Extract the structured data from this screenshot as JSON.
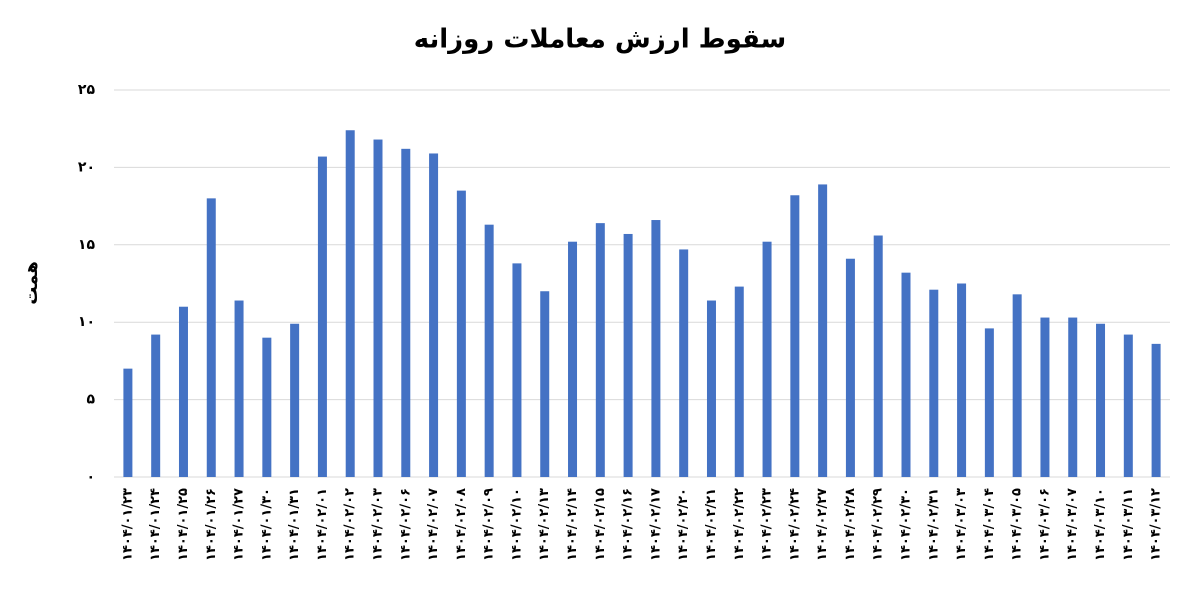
{
  "chart_data": {
    "type": "bar",
    "title": "سقوط ارزش معاملات روزانه",
    "y_label": "همت",
    "categories": [
      "۱۴۰۴/۰۱/۲۳",
      "۱۴۰۴/۰۱/۲۴",
      "۱۴۰۴/۰۱/۲۵",
      "۱۴۰۴/۰۱/۲۶",
      "۱۴۰۴/۰۱/۲۷",
      "۱۴۰۴/۰۱/۳۰",
      "۱۴۰۴/۰۱/۳۱",
      "۱۴۰۴/۰۲/۰۱",
      "۱۴۰۴/۰۲/۰۲",
      "۱۴۰۴/۰۲/۰۳",
      "۱۴۰۴/۰۲/۰۶",
      "۱۴۰۴/۰۲/۰۷",
      "۱۴۰۴/۰۲/۰۸",
      "۱۴۰۴/۰۲/۰۹",
      "۱۴۰۴/۰۲/۱۰",
      "۱۴۰۴/۰۲/۱۳",
      "۱۴۰۴/۰۲/۱۴",
      "۱۴۰۴/۰۲/۱۵",
      "۱۴۰۴/۰۲/۱۶",
      "۱۴۰۴/۰۲/۱۷",
      "۱۴۰۴/۰۲/۲۰",
      "۱۴۰۴/۰۲/۲۱",
      "۱۴۰۴/۰۲/۲۲",
      "۱۴۰۴/۰۲/۲۳",
      "۱۴۰۴/۰۲/۲۴",
      "۱۴۰۴/۰۲/۲۷",
      "۱۴۰۴/۰۲/۲۸",
      "۱۴۰۴/۰۲/۲۹",
      "۱۴۰۴/۰۲/۳۰",
      "۱۴۰۴/۰۲/۳۱",
      "۱۴۰۴/۰۳/۰۳",
      "۱۴۰۴/۰۳/۰۴",
      "۱۴۰۴/۰۳/۰۵",
      "۱۴۰۴/۰۳/۰۶",
      "۱۴۰۴/۰۳/۰۷",
      "۱۴۰۴/۰۳/۱۰",
      "۱۴۰۴/۰۳/۱۱",
      "۱۴۰۴/۰۳/۱۲"
    ],
    "values": [
      7.0,
      9.2,
      11.0,
      18.0,
      11.4,
      9.0,
      9.9,
      20.7,
      22.4,
      21.8,
      21.2,
      20.9,
      18.5,
      16.3,
      13.8,
      12.0,
      15.2,
      16.4,
      15.7,
      16.6,
      14.7,
      11.4,
      12.3,
      15.2,
      18.2,
      18.9,
      14.1,
      15.6,
      13.2,
      12.1,
      12.5,
      9.6,
      11.8,
      10.3,
      10.3,
      9.9,
      9.2,
      8.6
    ],
    "color": "#4472c4",
    "ylim": [
      0,
      25
    ],
    "yticks": [
      {
        "value": 0,
        "label": "۰"
      },
      {
        "value": 5,
        "label": "۵"
      },
      {
        "value": 10,
        "label": "۱۰"
      },
      {
        "value": 15,
        "label": "۱۵"
      },
      {
        "value": 20,
        "label": "۲۰"
      },
      {
        "value": 25,
        "label": "۲۵"
      }
    ],
    "grid": true
  }
}
